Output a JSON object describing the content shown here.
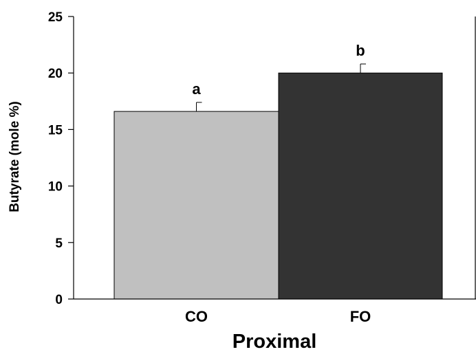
{
  "chart_data": {
    "type": "bar",
    "categories": [
      "CO",
      "FO"
    ],
    "values": [
      16.6,
      20.0
    ],
    "errors": [
      0.8,
      0.8
    ],
    "significance": [
      "a",
      "b"
    ],
    "colors": [
      "#c0c0c0",
      "#333333"
    ],
    "xlabel": "Proximal",
    "ylabel": "Butyrate (mole %)",
    "ylim": [
      0,
      25
    ],
    "yticks": [
      0,
      5,
      10,
      15,
      20,
      25
    ],
    "grid": false,
    "legend": "none"
  }
}
